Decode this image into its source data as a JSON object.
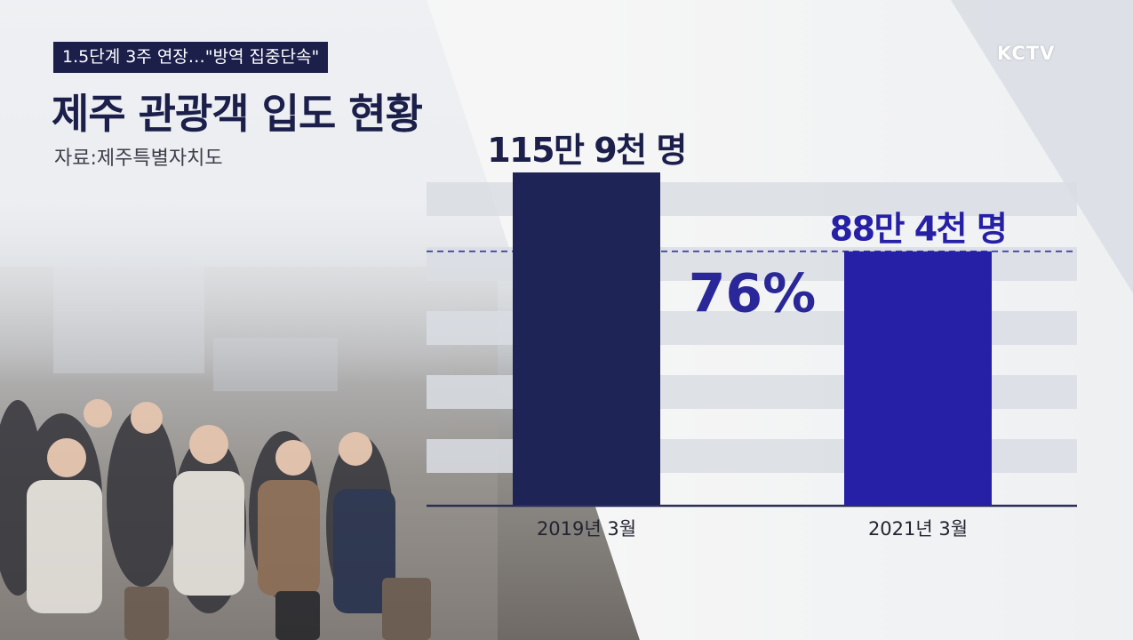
{
  "header": {
    "tag": "1.5단계 3주 연장…\"방역 집중단속\"",
    "title": "제주 관광객 입도 현황",
    "source": "자료:제주특별자치도",
    "logo": "KCTV"
  },
  "colors": {
    "bar_2019": "#1f2457",
    "bar_2021": "#2620a6",
    "title": "#1b1f4a",
    "tag_bg": "#1b1f4a",
    "percent": "#2a2899"
  },
  "chart_data": {
    "type": "bar",
    "categories": [
      "2019년 3월",
      "2021년 3월"
    ],
    "values": [
      1159000,
      884000
    ],
    "data_labels": [
      "115만 9천 명",
      "88만 4천 명"
    ],
    "ratio_label": "76%",
    "ylim": [
      0,
      1159000
    ],
    "grid": "horizontal bands",
    "reference_line": "dashed at 2021 value"
  }
}
